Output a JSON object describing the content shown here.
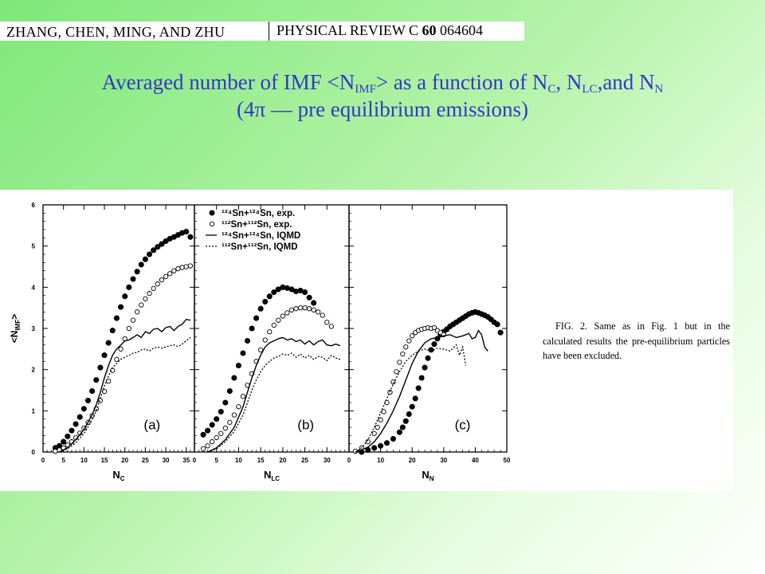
{
  "header": {
    "authors": "ZHANG, CHEN, MING, AND ZHU",
    "journal": "PHYSICAL REVIEW C",
    "volume": "60",
    "article": "064604"
  },
  "title": {
    "line1_a": "Averaged number of IMF <N",
    "line1_sub1": "IMF",
    "line1_b": "> as a function of N",
    "line1_sub2": "C",
    "line1_c": ", N",
    "line1_sub3": "LC",
    "line1_d": ",and N",
    "line1_sub4": "N",
    "line2": "(4π — pre equilibrium emissions)"
  },
  "caption": "FIG. 2. Same as in Fig. 1 but in the calculated results the pre-equilibrium particles have been excluded.",
  "chart_data": [
    {
      "type": "scatter",
      "panel_label": "(a)",
      "xlabel": "N",
      "xlabel_sub": "C",
      "ylabel": "<N",
      "ylabel_sub": "IMF",
      "ylabel_end": ">",
      "xlim": [
        0,
        37
      ],
      "ylim": [
        0,
        6
      ],
      "xticks": [
        0,
        5,
        10,
        15,
        20,
        25,
        30,
        35
      ],
      "yticks": [
        0,
        1,
        2,
        3,
        4,
        5,
        6
      ],
      "series": [
        {
          "name": "¹²⁴Sn+¹²⁴Sn, exp.",
          "marker": "filled-circle",
          "x": [
            3,
            4,
            5,
            6,
            7,
            8,
            9,
            10,
            11,
            12,
            13,
            14,
            15,
            16,
            17,
            18,
            19,
            20,
            21,
            22,
            23,
            24,
            25,
            26,
            27,
            28,
            29,
            30,
            31,
            32,
            33,
            34,
            35,
            36
          ],
          "y": [
            0.1,
            0.15,
            0.25,
            0.38,
            0.52,
            0.68,
            0.85,
            1.05,
            1.25,
            1.48,
            1.75,
            2.05,
            2.35,
            2.65,
            2.95,
            3.25,
            3.52,
            3.78,
            4.0,
            4.2,
            4.38,
            4.55,
            4.68,
            4.8,
            4.9,
            4.98,
            5.05,
            5.12,
            5.18,
            5.22,
            5.27,
            5.32,
            5.35,
            5.22
          ]
        },
        {
          "name": "¹¹²Sn+¹¹²Sn, exp.",
          "marker": "open-circle",
          "x": [
            3,
            4,
            5,
            6,
            7,
            8,
            9,
            10,
            11,
            12,
            13,
            14,
            15,
            16,
            17,
            18,
            19,
            20,
            21,
            22,
            23,
            24,
            25,
            26,
            27,
            28,
            29,
            30,
            31,
            32,
            33,
            34,
            35,
            36
          ],
          "y": [
            0.02,
            0.05,
            0.1,
            0.17,
            0.25,
            0.35,
            0.46,
            0.58,
            0.72,
            0.88,
            1.05,
            1.25,
            1.47,
            1.72,
            1.98,
            2.25,
            2.5,
            2.75,
            3.0,
            3.2,
            3.4,
            3.57,
            3.72,
            3.85,
            3.97,
            4.08,
            4.18,
            4.26,
            4.33,
            4.4,
            4.45,
            4.48,
            4.5,
            4.52
          ]
        },
        {
          "name": "¹²⁴Sn+¹²⁴Sn, IQMD",
          "marker": "solid-line",
          "x": [
            4,
            6,
            8,
            10,
            12,
            13,
            14,
            15,
            16,
            17,
            18,
            19,
            20,
            21,
            22,
            23,
            24,
            25,
            26,
            27,
            28,
            29,
            30,
            31,
            32,
            33,
            34,
            35,
            36
          ],
          "y": [
            0.0,
            0.1,
            0.3,
            0.55,
            0.9,
            1.15,
            1.45,
            1.8,
            2.1,
            2.35,
            2.5,
            2.6,
            2.7,
            2.72,
            2.78,
            2.85,
            2.78,
            2.92,
            2.88,
            2.98,
            3.0,
            2.92,
            3.02,
            3.05,
            2.95,
            3.05,
            3.1,
            3.22,
            3.2
          ]
        },
        {
          "name": "¹¹²Sn+¹¹²Sn, IQMD",
          "marker": "dotted-line",
          "x": [
            4,
            6,
            8,
            10,
            12,
            13,
            14,
            15,
            16,
            17,
            18,
            19,
            20,
            21,
            22,
            23,
            24,
            25,
            26,
            27,
            28,
            29,
            30,
            31,
            32,
            33,
            34,
            35,
            36
          ],
          "y": [
            0.0,
            0.08,
            0.22,
            0.45,
            0.78,
            1.0,
            1.3,
            1.6,
            1.85,
            2.05,
            2.15,
            2.25,
            2.3,
            2.35,
            2.4,
            2.42,
            2.48,
            2.5,
            2.45,
            2.52,
            2.55,
            2.52,
            2.55,
            2.58,
            2.6,
            2.56,
            2.62,
            2.7,
            2.78
          ]
        }
      ]
    },
    {
      "type": "scatter",
      "panel_label": "(b)",
      "xlabel": "N",
      "xlabel_sub": "LC",
      "xlim": [
        0,
        35
      ],
      "ylim": [
        0,
        6
      ],
      "xticks": [
        0,
        5,
        10,
        15,
        20,
        25,
        30
      ],
      "series": [
        {
          "name": "¹²⁴Sn+¹²⁴Sn, exp.",
          "marker": "filled-circle",
          "x": [
            2,
            3,
            4,
            5,
            6,
            7,
            8,
            9,
            10,
            11,
            12,
            13,
            14,
            15,
            16,
            17,
            18,
            19,
            20,
            21,
            22,
            23,
            24,
            25,
            26,
            27
          ],
          "y": [
            0.42,
            0.52,
            0.66,
            0.8,
            0.98,
            1.2,
            1.48,
            1.8,
            2.1,
            2.4,
            2.7,
            3.0,
            3.25,
            3.48,
            3.65,
            3.78,
            3.88,
            3.95,
            4.0,
            3.98,
            3.95,
            3.9,
            3.92,
            3.88,
            3.75,
            3.62
          ]
        },
        {
          "name": "¹¹²Sn+¹¹²Sn, exp.",
          "marker": "open-circle",
          "x": [
            2,
            3,
            4,
            5,
            6,
            7,
            8,
            9,
            10,
            11,
            12,
            13,
            14,
            15,
            16,
            17,
            18,
            19,
            20,
            21,
            22,
            23,
            24,
            25,
            26,
            27,
            28,
            29,
            30,
            31
          ],
          "y": [
            0.08,
            0.15,
            0.25,
            0.35,
            0.45,
            0.58,
            0.72,
            0.9,
            1.1,
            1.35,
            1.62,
            1.9,
            2.2,
            2.48,
            2.72,
            2.92,
            3.08,
            3.2,
            3.3,
            3.38,
            3.45,
            3.48,
            3.5,
            3.5,
            3.48,
            3.45,
            3.4,
            3.32,
            3.15,
            3.05
          ]
        },
        {
          "name": "¹²⁴Sn+¹²⁴Sn, IQMD",
          "marker": "solid-line",
          "x": [
            3,
            5,
            7,
            9,
            11,
            12,
            13,
            14,
            15,
            16,
            17,
            18,
            19,
            20,
            21,
            22,
            23,
            24,
            25,
            26,
            27,
            28,
            29,
            30,
            31,
            32,
            33
          ],
          "y": [
            0.0,
            0.1,
            0.3,
            0.6,
            1.1,
            1.45,
            1.8,
            2.1,
            2.35,
            2.55,
            2.65,
            2.7,
            2.75,
            2.78,
            2.72,
            2.75,
            2.68,
            2.72,
            2.62,
            2.7,
            2.6,
            2.68,
            2.72,
            2.6,
            2.58,
            2.62,
            2.58
          ]
        },
        {
          "name": "¹¹²Sn+¹¹²Sn, IQMD",
          "marker": "dotted-line",
          "x": [
            3,
            5,
            7,
            9,
            11,
            12,
            13,
            14,
            15,
            16,
            17,
            18,
            19,
            20,
            21,
            22,
            23,
            24,
            25,
            26,
            27,
            28,
            29,
            30,
            31,
            32,
            33
          ],
          "y": [
            0.0,
            0.08,
            0.25,
            0.5,
            0.9,
            1.2,
            1.5,
            1.75,
            1.95,
            2.1,
            2.2,
            2.28,
            2.32,
            2.38,
            2.35,
            2.4,
            2.3,
            2.38,
            2.28,
            2.35,
            2.25,
            2.32,
            2.3,
            2.22,
            2.35,
            2.28,
            2.25
          ]
        }
      ]
    },
    {
      "type": "scatter",
      "panel_label": "(c)",
      "xlabel": "N",
      "xlabel_sub": "N",
      "xlim": [
        0,
        50
      ],
      "ylim": [
        0,
        6
      ],
      "xticks": [
        0,
        10,
        20,
        30,
        40,
        50
      ],
      "series": [
        {
          "name": "¹²⁴Sn+¹²⁴Sn, exp.",
          "marker": "filled-circle",
          "x": [
            4,
            6,
            8,
            10,
            12,
            14,
            16,
            17,
            18,
            19,
            20,
            21,
            22,
            23,
            24,
            25,
            26,
            27,
            28,
            29,
            30,
            31,
            32,
            33,
            34,
            35,
            36,
            37,
            38,
            39,
            40,
            41,
            42,
            43,
            44,
            45,
            46,
            47,
            48
          ],
          "y": [
            0.0,
            0.05,
            0.1,
            0.15,
            0.22,
            0.32,
            0.48,
            0.6,
            0.75,
            0.92,
            1.1,
            1.3,
            1.55,
            1.8,
            2.05,
            2.28,
            2.48,
            2.62,
            2.75,
            2.85,
            2.92,
            2.98,
            3.05,
            3.1,
            3.15,
            3.2,
            3.25,
            3.3,
            3.35,
            3.38,
            3.4,
            3.38,
            3.35,
            3.32,
            3.28,
            3.22,
            3.15,
            3.1,
            2.9
          ]
        },
        {
          "name": "¹¹²Sn+¹¹²Sn, exp.",
          "marker": "open-circle",
          "x": [
            2,
            4,
            6,
            8,
            9,
            10,
            11,
            12,
            13,
            14,
            15,
            16,
            17,
            18,
            19,
            20,
            21,
            22,
            23,
            24,
            25,
            26,
            27,
            28,
            29,
            30
          ],
          "y": [
            0.02,
            0.1,
            0.25,
            0.45,
            0.6,
            0.78,
            0.98,
            1.2,
            1.45,
            1.7,
            1.95,
            2.18,
            2.38,
            2.55,
            2.7,
            2.82,
            2.9,
            2.95,
            2.98,
            3.0,
            3.02,
            3.0,
            3.02,
            2.95,
            2.9,
            2.85
          ]
        },
        {
          "name": "¹²⁴Sn+¹²⁴Sn, IQMD",
          "marker": "solid-line",
          "x": [
            2,
            4,
            6,
            8,
            10,
            12,
            14,
            16,
            18,
            20,
            22,
            24,
            26,
            28,
            30,
            32,
            34,
            36,
            38,
            39,
            40,
            41,
            42,
            43,
            44
          ],
          "y": [
            0.0,
            0.05,
            0.12,
            0.25,
            0.45,
            0.7,
            1.0,
            1.35,
            1.75,
            2.15,
            2.45,
            2.65,
            2.75,
            2.78,
            2.82,
            2.85,
            2.78,
            2.82,
            2.88,
            2.75,
            2.78,
            2.95,
            2.85,
            2.55,
            2.45
          ]
        },
        {
          "name": "¹¹²Sn+¹¹²Sn, IQMD",
          "marker": "dotted-line",
          "x": [
            2,
            4,
            6,
            8,
            10,
            12,
            14,
            16,
            18,
            20,
            22,
            24,
            26,
            28,
            30,
            32,
            34,
            35,
            36,
            37
          ],
          "y": [
            0.0,
            0.1,
            0.3,
            0.6,
            0.95,
            1.3,
            1.65,
            1.95,
            2.2,
            2.35,
            2.45,
            2.5,
            2.45,
            2.52,
            2.5,
            2.45,
            2.6,
            2.35,
            2.55,
            2.1
          ]
        }
      ]
    }
  ],
  "legend": {
    "entries": [
      {
        "label": "¹²⁴Sn+¹²⁴Sn, exp."
      },
      {
        "label": "¹¹²Sn+¹¹²Sn, exp."
      },
      {
        "label": "¹²⁴Sn+¹²⁴Sn, IQMD"
      },
      {
        "label": "¹¹²Sn+¹¹²Sn, IQMD"
      }
    ]
  }
}
